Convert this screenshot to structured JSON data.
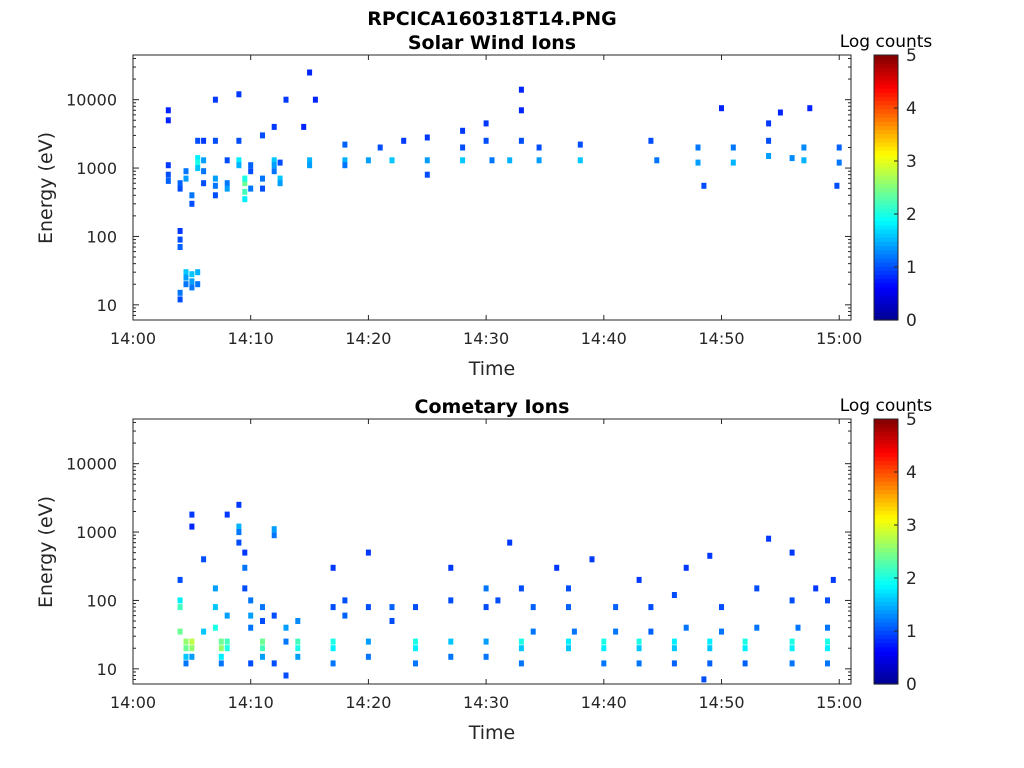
{
  "figure_title": "RPCICA160318T14.PNG",
  "colorbar_colors": [
    "#00008f",
    "#0000ff",
    "#0080ff",
    "#00ffff",
    "#80ff80",
    "#ffff00",
    "#ff8000",
    "#ff0000",
    "#800000"
  ],
  "chart_data": [
    {
      "type": "heatmap",
      "title": "Solar Wind Ions",
      "xlabel": "Time",
      "ylabel": "Energy (eV)",
      "y_scale": "log",
      "xlim": [
        "14:00",
        "15:01"
      ],
      "ylim": [
        6,
        45000
      ],
      "x_ticks": [
        "14:00",
        "14:10",
        "14:20",
        "14:30",
        "14:40",
        "14:50",
        "15:00"
      ],
      "y_ticks": [
        {
          "value": 10,
          "label": "10"
        },
        {
          "value": 100,
          "label": "100"
        },
        {
          "value": 1000,
          "label": "1000"
        },
        {
          "value": 10000,
          "label": "10000"
        }
      ],
      "colorbar": {
        "label": "Log counts",
        "range": [
          0,
          5
        ],
        "ticks": [
          "0",
          "1",
          "2",
          "3",
          "4",
          "5"
        ]
      },
      "values_columns": [
        "time",
        "energy_eV",
        "log_counts"
      ],
      "values": [
        [
          "14:03",
          7000,
          0.8
        ],
        [
          "14:03",
          5000,
          0.8
        ],
        [
          "14:03",
          800,
          1.0
        ],
        [
          "14:03",
          650,
          1.1
        ],
        [
          "14:03",
          1100,
          0.9
        ],
        [
          "14:04",
          500,
          1.0
        ],
        [
          "14:04",
          600,
          1.1
        ],
        [
          "14:04",
          120,
          0.9
        ],
        [
          "14:04",
          90,
          1.0
        ],
        [
          "14:04",
          70,
          1.1
        ],
        [
          "14:04",
          15,
          1.2
        ],
        [
          "14:04",
          12,
          1.0
        ],
        [
          "14:04.5",
          700,
          1.4
        ],
        [
          "14:04.5",
          900,
          1.2
        ],
        [
          "14:04.5",
          30,
          1.6
        ],
        [
          "14:04.5",
          25,
          1.4
        ],
        [
          "14:04.5",
          20,
          1.2
        ],
        [
          "14:05",
          400,
          1.2
        ],
        [
          "14:05",
          300,
          1.0
        ],
        [
          "14:05",
          28,
          1.6
        ],
        [
          "14:05",
          22,
          1.4
        ],
        [
          "14:05",
          18,
          1.2
        ],
        [
          "14:05.5",
          1400,
          1.8
        ],
        [
          "14:05.5",
          1200,
          2.0
        ],
        [
          "14:05.5",
          1000,
          1.6
        ],
        [
          "14:05.5",
          2500,
          1.0
        ],
        [
          "14:05.5",
          30,
          1.5
        ],
        [
          "14:05.5",
          20,
          1.2
        ],
        [
          "14:06",
          1300,
          1.4
        ],
        [
          "14:06",
          900,
          1.2
        ],
        [
          "14:06",
          600,
          1.0
        ],
        [
          "14:06",
          2500,
          0.9
        ],
        [
          "14:07",
          700,
          1.4
        ],
        [
          "14:07",
          550,
          1.2
        ],
        [
          "14:07",
          400,
          1.0
        ],
        [
          "14:07",
          10000,
          0.9
        ],
        [
          "14:07",
          2500,
          1.0
        ],
        [
          "14:08",
          600,
          1.2
        ],
        [
          "14:08",
          500,
          1.4
        ],
        [
          "14:08",
          1300,
          1.0
        ],
        [
          "14:09",
          1300,
          1.8
        ],
        [
          "14:09",
          1100,
          1.5
        ],
        [
          "14:09",
          2500,
          1.0
        ],
        [
          "14:09",
          12000,
          0.9
        ],
        [
          "14:09.5",
          600,
          2.4
        ],
        [
          "14:09.5",
          450,
          2.2
        ],
        [
          "14:09.5",
          350,
          1.8
        ],
        [
          "14:09.5",
          700,
          2.0
        ],
        [
          "14:10",
          500,
          1.2
        ],
        [
          "14:10",
          900,
          1.0
        ],
        [
          "14:10",
          1100,
          1.1
        ],
        [
          "14:11",
          700,
          1.2
        ],
        [
          "14:11",
          500,
          1.0
        ],
        [
          "14:11",
          3000,
          1.0
        ],
        [
          "14:12",
          1300,
          1.6
        ],
        [
          "14:12",
          1100,
          1.4
        ],
        [
          "14:12",
          900,
          1.2
        ],
        [
          "14:12",
          4000,
          0.9
        ],
        [
          "14:12.5",
          700,
          1.6
        ],
        [
          "14:12.5",
          600,
          1.4
        ],
        [
          "14:12.5",
          1200,
          1.0
        ],
        [
          "14:13",
          10000,
          0.9
        ],
        [
          "14:15",
          25000,
          0.8
        ],
        [
          "14:14.5",
          4000,
          0.8
        ],
        [
          "14:15.5",
          10000,
          0.8
        ],
        [
          "14:15",
          1300,
          1.5
        ],
        [
          "14:15",
          1100,
          1.4
        ],
        [
          "14:18",
          1300,
          1.5
        ],
        [
          "14:18",
          2200,
          1.1
        ],
        [
          "14:18",
          1100,
          1.2
        ],
        [
          "14:20",
          1300,
          1.4
        ],
        [
          "14:22",
          1300,
          1.6
        ],
        [
          "14:21",
          2000,
          1.0
        ],
        [
          "14:23",
          2500,
          0.9
        ],
        [
          "14:25",
          1300,
          1.4
        ],
        [
          "14:25",
          800,
          1.0
        ],
        [
          "14:25",
          2800,
          0.9
        ],
        [
          "14:28",
          1300,
          1.6
        ],
        [
          "14:28",
          2000,
          1.0
        ],
        [
          "14:28",
          3500,
          0.9
        ],
        [
          "14:30",
          2500,
          1.0
        ],
        [
          "14:30",
          4500,
          0.9
        ],
        [
          "14:30.5",
          1300,
          1.2
        ],
        [
          "14:32",
          1300,
          1.5
        ],
        [
          "14:33",
          14000,
          0.8
        ],
        [
          "14:33",
          7000,
          0.8
        ],
        [
          "14:33",
          2500,
          1.0
        ],
        [
          "14:34.5",
          1300,
          1.4
        ],
        [
          "14:34.5",
          2000,
          1.0
        ],
        [
          "14:38",
          1300,
          1.6
        ],
        [
          "14:38",
          2200,
          1.0
        ],
        [
          "14:44",
          2500,
          1.0
        ],
        [
          "14:44.5",
          1300,
          1.2
        ],
        [
          "14:48",
          2000,
          1.2
        ],
        [
          "14:48",
          1200,
          1.4
        ],
        [
          "14:48.5",
          550,
          1.0
        ],
        [
          "14:50",
          7500,
          0.8
        ],
        [
          "14:51",
          2000,
          1.2
        ],
        [
          "14:51",
          1200,
          1.5
        ],
        [
          "14:54",
          1500,
          1.4
        ],
        [
          "14:54",
          4500,
          0.9
        ],
        [
          "14:54",
          2500,
          1.0
        ],
        [
          "14:55",
          6500,
          0.8
        ],
        [
          "14:56",
          1400,
          1.3
        ],
        [
          "14:57",
          2000,
          1.3
        ],
        [
          "14:57",
          1300,
          1.5
        ],
        [
          "14:57.5",
          7500,
          0.8
        ],
        [
          "15:00",
          2000,
          1.1
        ],
        [
          "15:00",
          1200,
          1.2
        ],
        [
          "14:59.8",
          550,
          1.0
        ]
      ]
    },
    {
      "type": "heatmap",
      "title": "Cometary Ions",
      "xlabel": "Time",
      "ylabel": "Energy (eV)",
      "y_scale": "log",
      "xlim": [
        "14:00",
        "15:01"
      ],
      "ylim": [
        6,
        45000
      ],
      "x_ticks": [
        "14:00",
        "14:10",
        "14:20",
        "14:30",
        "14:40",
        "14:50",
        "15:00"
      ],
      "y_ticks": [
        {
          "value": 10,
          "label": "10"
        },
        {
          "value": 100,
          "label": "100"
        },
        {
          "value": 1000,
          "label": "1000"
        },
        {
          "value": 10000,
          "label": "10000"
        }
      ],
      "colorbar": {
        "label": "Log counts",
        "range": [
          0,
          5
        ],
        "ticks": [
          "0",
          "1",
          "2",
          "3",
          "4",
          "5"
        ]
      },
      "values_columns": [
        "time",
        "energy_eV",
        "log_counts"
      ],
      "values": [
        [
          "14:04",
          200,
          1.0
        ],
        [
          "14:04",
          100,
          1.8
        ],
        [
          "14:04",
          80,
          2.2
        ],
        [
          "14:04",
          35,
          2.4
        ],
        [
          "14:04.5",
          25,
          2.6
        ],
        [
          "14:04.5",
          20,
          2.4
        ],
        [
          "14:04.5",
          15,
          1.6
        ],
        [
          "14:04.5",
          12,
          1.2
        ],
        [
          "14:05",
          25,
          2.8
        ],
        [
          "14:05",
          20,
          2.6
        ],
        [
          "14:05",
          15,
          1.4
        ],
        [
          "14:05",
          1800,
          0.9
        ],
        [
          "14:05",
          1200,
          0.8
        ],
        [
          "14:06",
          35,
          1.6
        ],
        [
          "14:06",
          400,
          1.0
        ],
        [
          "14:07",
          150,
          1.4
        ],
        [
          "14:07",
          80,
          1.6
        ],
        [
          "14:07",
          40,
          2.0
        ],
        [
          "14:07.5",
          25,
          2.4
        ],
        [
          "14:07.5",
          20,
          2.6
        ],
        [
          "14:07.5",
          15,
          1.8
        ],
        [
          "14:07.5",
          12,
          1.2
        ],
        [
          "14:08",
          25,
          2.2
        ],
        [
          "14:08",
          20,
          2.0
        ],
        [
          "14:08",
          60,
          1.4
        ],
        [
          "14:08",
          1800,
          0.9
        ],
        [
          "14:09",
          1200,
          1.5
        ],
        [
          "14:09",
          1000,
          1.2
        ],
        [
          "14:09",
          700,
          1.0
        ],
        [
          "14:09",
          2500,
          0.9
        ],
        [
          "14:09.5",
          300,
          1.2
        ],
        [
          "14:09.5",
          150,
          1.0
        ],
        [
          "14:09.5",
          500,
          0.9
        ],
        [
          "14:10",
          100,
          1.2
        ],
        [
          "14:10",
          60,
          1.4
        ],
        [
          "14:10",
          40,
          1.2
        ],
        [
          "14:10",
          12,
          1.0
        ],
        [
          "14:11",
          25,
          2.4
        ],
        [
          "14:11",
          20,
          2.2
        ],
        [
          "14:11",
          15,
          1.4
        ],
        [
          "14:11",
          80,
          1.2
        ],
        [
          "14:11",
          50,
          1.0
        ],
        [
          "14:12",
          1100,
          1.4
        ],
        [
          "14:12",
          900,
          1.2
        ],
        [
          "14:12",
          12,
          1.0
        ],
        [
          "14:12",
          60,
          1.0
        ],
        [
          "14:13",
          40,
          1.4
        ],
        [
          "14:13",
          25,
          1.2
        ],
        [
          "14:13",
          8,
          1.0
        ],
        [
          "14:14",
          25,
          2.2
        ],
        [
          "14:14",
          20,
          2.0
        ],
        [
          "14:14",
          15,
          1.4
        ],
        [
          "14:14",
          50,
          1.3
        ],
        [
          "14:17",
          25,
          2.0
        ],
        [
          "14:17",
          20,
          1.8
        ],
        [
          "14:17",
          12,
          1.2
        ],
        [
          "14:17",
          80,
          1.0
        ],
        [
          "14:17",
          300,
          0.9
        ],
        [
          "14:18",
          100,
          1.0
        ],
        [
          "14:18",
          60,
          1.1
        ],
        [
          "14:20",
          25,
          1.4
        ],
        [
          "14:20",
          15,
          1.2
        ],
        [
          "14:20",
          80,
          1.0
        ],
        [
          "14:20",
          500,
          0.9
        ],
        [
          "14:22",
          80,
          1.1
        ],
        [
          "14:22",
          50,
          1.0
        ],
        [
          "14:24",
          25,
          2.0
        ],
        [
          "14:24",
          20,
          1.8
        ],
        [
          "14:24",
          12,
          1.2
        ],
        [
          "14:24",
          80,
          1.0
        ],
        [
          "14:27",
          25,
          1.6
        ],
        [
          "14:27",
          15,
          1.2
        ],
        [
          "14:27",
          100,
          1.0
        ],
        [
          "14:27",
          300,
          0.9
        ],
        [
          "14:30",
          150,
          1.2
        ],
        [
          "14:30",
          80,
          1.0
        ],
        [
          "14:30",
          25,
          1.4
        ],
        [
          "14:30",
          15,
          1.2
        ],
        [
          "14:31",
          100,
          1.0
        ],
        [
          "14:32",
          700,
          0.9
        ],
        [
          "14:33",
          25,
          2.0
        ],
        [
          "14:33",
          20,
          1.6
        ],
        [
          "14:33",
          12,
          1.2
        ],
        [
          "14:33",
          150,
          1.0
        ],
        [
          "14:34",
          80,
          1.1
        ],
        [
          "14:34",
          35,
          1.2
        ],
        [
          "14:36",
          300,
          0.9
        ],
        [
          "14:37",
          25,
          1.8
        ],
        [
          "14:37",
          20,
          1.6
        ],
        [
          "14:37",
          150,
          1.0
        ],
        [
          "14:37",
          80,
          1.1
        ],
        [
          "14:37.5",
          35,
          1.2
        ],
        [
          "14:39",
          400,
          0.9
        ],
        [
          "14:40",
          25,
          2.0
        ],
        [
          "14:40",
          20,
          1.8
        ],
        [
          "14:40",
          12,
          1.2
        ],
        [
          "14:41",
          80,
          1.1
        ],
        [
          "14:41",
          35,
          1.2
        ],
        [
          "14:43",
          25,
          2.0
        ],
        [
          "14:43",
          20,
          1.6
        ],
        [
          "14:43",
          12,
          1.2
        ],
        [
          "14:43",
          200,
          0.9
        ],
        [
          "14:44",
          80,
          1.0
        ],
        [
          "14:44",
          35,
          1.1
        ],
        [
          "14:46",
          25,
          1.8
        ],
        [
          "14:46",
          20,
          1.6
        ],
        [
          "14:46",
          12,
          1.1
        ],
        [
          "14:46",
          120,
          1.0
        ],
        [
          "14:47",
          40,
          1.2
        ],
        [
          "14:47",
          300,
          0.9
        ],
        [
          "14:49",
          25,
          1.8
        ],
        [
          "14:49",
          20,
          1.6
        ],
        [
          "14:49",
          12,
          1.1
        ],
        [
          "14:49",
          450,
          0.9
        ],
        [
          "14:48.5",
          7,
          1.0
        ],
        [
          "14:50",
          80,
          1.0
        ],
        [
          "14:50",
          35,
          1.2
        ],
        [
          "14:52",
          25,
          2.0
        ],
        [
          "14:52",
          20,
          1.8
        ],
        [
          "14:52",
          12,
          1.1
        ],
        [
          "14:53",
          150,
          1.0
        ],
        [
          "14:53",
          40,
          1.2
        ],
        [
          "14:54",
          800,
          0.9
        ],
        [
          "14:56",
          25,
          2.0
        ],
        [
          "14:56",
          20,
          1.8
        ],
        [
          "14:56",
          12,
          1.2
        ],
        [
          "14:56",
          100,
          1.0
        ],
        [
          "14:56.5",
          40,
          1.2
        ],
        [
          "14:56",
          500,
          0.9
        ],
        [
          "14:59",
          25,
          2.0
        ],
        [
          "14:59",
          20,
          1.8
        ],
        [
          "14:59",
          12,
          1.2
        ],
        [
          "14:59",
          100,
          1.0
        ],
        [
          "14:59",
          40,
          1.2
        ],
        [
          "14:59.5",
          200,
          0.9
        ],
        [
          "14:58",
          150,
          0.9
        ]
      ]
    }
  ]
}
